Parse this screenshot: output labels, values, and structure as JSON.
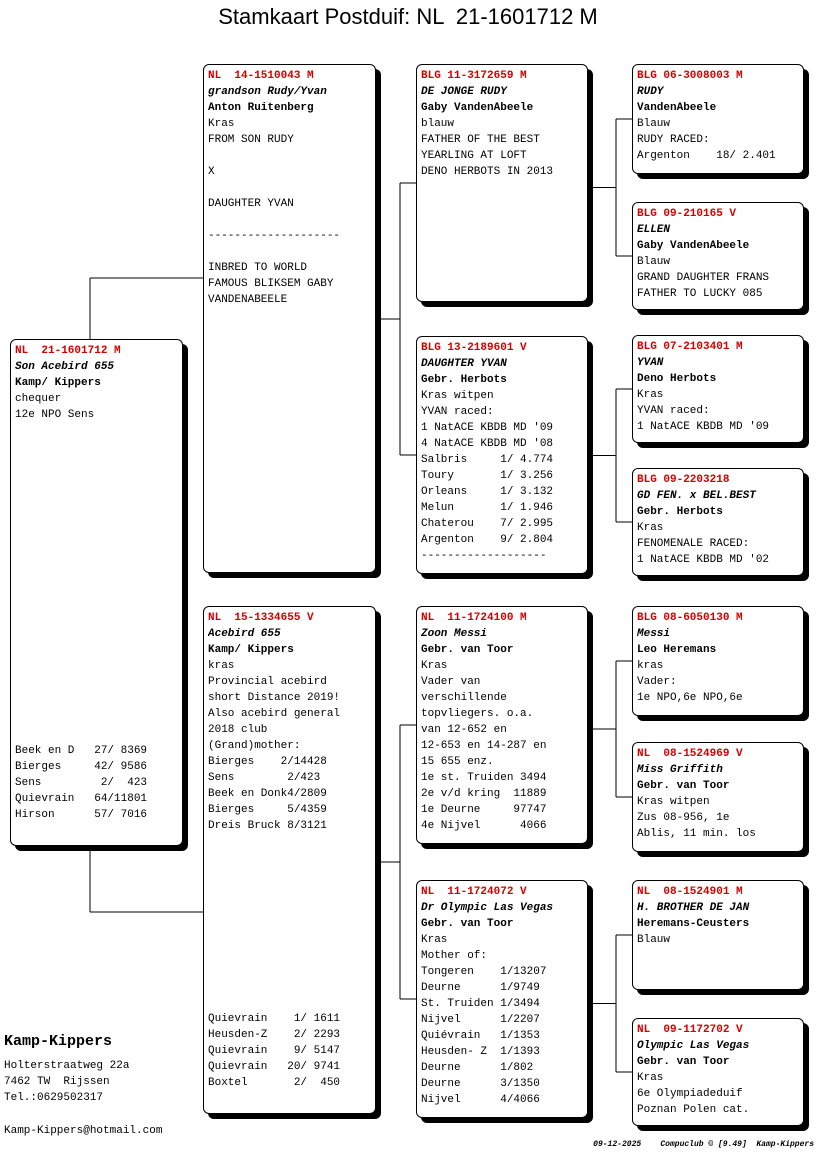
{
  "title": "Stamkaart Postduif: NL  21-1601712 M",
  "pigeons": [
    {
      "sections": [
        [
          "NL  21-1601712 M",
          "Son Acebird 655",
          "Kamp/ Kippers",
          "chequer",
          "12e NPO Sens"
        ]
      ],
      "results": [
        "Beek en D   27/ 8369",
        "Bierges     42/ 9586",
        "Sens         2/  423",
        "Quievrain   64/11801",
        "Hirson      57/ 7016"
      ]
    },
    {
      "sections": [
        [
          "NL  14-1510043 M",
          "grandson Rudy/Yvan",
          "Anton Ruitenberg",
          "Kras",
          "FROM SON RUDY"
        ],
        [
          "X"
        ],
        [
          "DAUGHTER YVAN"
        ],
        [
          "--------------------"
        ],
        [
          "INBRED TO WORLD",
          "FAMOUS BLIKSEM GABY",
          "VANDENABEELE"
        ]
      ]
    },
    {
      "sections": [
        [
          "NL  15-1334655 V",
          "Acebird 655",
          "Kamp/ Kippers",
          "kras",
          "Provincial acebird",
          "short Distance 2019!",
          "Also acebird general",
          "2018 club",
          "(Grand)mother:",
          "Bierges    2/14428",
          "Sens        2/423",
          "Beek en Donk4/2809",
          "Bierges     5/4359",
          "Dreis Bruck 8/3121"
        ]
      ],
      "results": [
        "Quievrain    1/ 1611",
        "Heusden-Z    2/ 2293",
        "Quievrain    9/ 5147",
        "Quievrain   20/ 9741",
        "Boxtel       2/  450"
      ]
    },
    {
      "sections": [
        [
          "BLG 11-3172659 M",
          "DE JONGE RUDY",
          "Gaby VandenAbeele",
          "blauw",
          "FATHER OF THE BEST",
          "YEARLING AT LOFT",
          "DENO HERBOTS IN 2013"
        ]
      ]
    },
    {
      "sections": [
        [
          "BLG 13-2189601 V",
          "DAUGHTER YVAN",
          "Gebr. Herbots",
          "Kras witpen",
          "YVAN raced:",
          "1 NatACE KBDB MD '09",
          "4 NatACE KBDB MD '08",
          "Salbris     1/ 4.774",
          "Toury       1/ 3.256",
          "Orleans     1/ 3.132",
          "Melun       1/ 1.946",
          "Chaterou    7/ 2.995",
          "Argenton    9/ 2.804",
          "-------------------"
        ]
      ]
    },
    {
      "sections": [
        [
          "NL  11-1724100 M",
          "Zoon Messi",
          "Gebr. van Toor",
          "Kras",
          "Vader van",
          "verschillende",
          "topvliegers. o.a.",
          "van 12-652 en",
          "12-653 en 14-287 en",
          "15 655 enz.",
          "1e st. Truiden 3494",
          "2e v/d kring  11889",
          "1e Deurne     97747",
          "4e Nijvel      4066"
        ]
      ]
    },
    {
      "sections": [
        [
          "NL  11-1724072 V",
          "Dr Olympic Las Vegas",
          "Gebr. van Toor",
          "Kras",
          "Mother of:",
          "Tongeren    1/13207",
          "Deurne      1/9749",
          "St. Truiden 1/3494",
          "Nijvel      1/2207",
          "Quiévrain   1/1353",
          "Heusden- Z  1/1393",
          "Deurne      1/802",
          "Deurne      3/1350",
          "Nijvel      4/4066"
        ]
      ]
    },
    {
      "sections": [
        [
          "BLG 06-3008003 M",
          "RUDY",
          "VandenAbeele",
          "Blauw",
          "RUDY RACED:",
          "Argenton    18/ 2.401"
        ]
      ]
    },
    {
      "sections": [
        [
          "BLG 09-210165 V",
          "ELLEN",
          "Gaby VandenAbeele",
          "Blauw",
          "GRAND DAUGHTER FRANS",
          "FATHER TO LUCKY 085"
        ]
      ]
    },
    {
      "sections": [
        [
          "BLG 07-2103401 M",
          "YVAN",
          "Deno Herbots",
          "Kras",
          "YVAN raced:",
          "1 NatACE KBDB MD '09"
        ]
      ]
    },
    {
      "sections": [
        [
          "BLG 09-2203218",
          "GD FEN. x BEL.BEST",
          "Gebr. Herbots",
          "Kras",
          "FENOMENALE RACED:",
          "1 NatACE KBDB MD '02"
        ]
      ]
    },
    {
      "sections": [
        [
          "BLG 08-6050130 M",
          "Messi",
          "Leo Heremans",
          "kras",
          "Vader:",
          "1e NPO,6e NPO,6e"
        ]
      ]
    },
    {
      "sections": [
        [
          "NL  08-1524969 V",
          "Miss Griffith",
          "Gebr. van Toor",
          "Kras witpen",
          "Zus 08-956, 1e",
          "Ablis, 11 min. los"
        ]
      ]
    },
    {
      "sections": [
        [
          "NL  08-1524901 M",
          "H. BROTHER DE JAN",
          "Heremans-Ceusters",
          "Blauw"
        ]
      ]
    },
    {
      "sections": [
        [
          "NL  09-1172702 V",
          "Olympic Las Vegas",
          "Gebr. van Toor",
          "Kras",
          "6e Olympiadeduif",
          "Poznan Polen cat."
        ]
      ]
    }
  ],
  "breeder": {
    "name": "Kamp-Kippers",
    "address": [
      "Holterstraatweg 22a",
      "7462 TW  Rijssen",
      "Tel.:0629502317"
    ],
    "email": "Kamp-Kippers@hotmail.com"
  },
  "footer": "09-12-2025    Compuclub © [9.49]  Kamp-Kippers"
}
